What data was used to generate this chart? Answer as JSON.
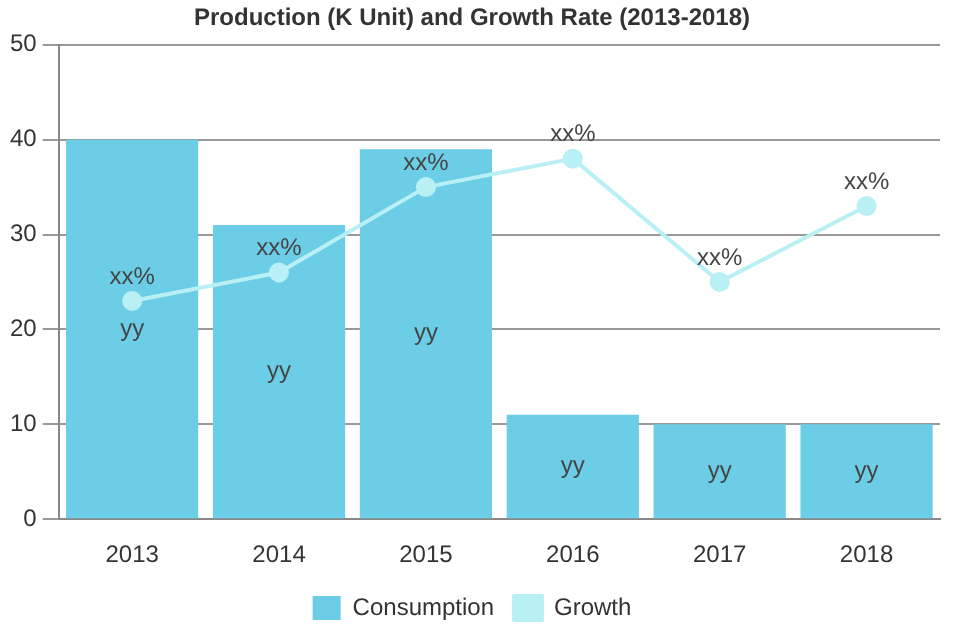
{
  "chart_data": {
    "type": "bar",
    "title": "Production (K Unit) and Growth Rate (2013-2018)",
    "categories": [
      "2013",
      "2014",
      "2015",
      "2016",
      "2017",
      "2018"
    ],
    "series": [
      {
        "name": "Consumption",
        "color": "#6ccde6",
        "values": [
          40,
          31,
          39,
          11,
          10,
          10
        ],
        "value_labels": [
          "yy",
          "yy",
          "yy",
          "yy",
          "yy",
          "yy"
        ]
      },
      {
        "name": "Growth",
        "type": "line",
        "color": "#b8f0f5",
        "values": [
          23,
          26,
          35,
          38,
          25,
          33
        ],
        "value_labels": [
          "xx%",
          "xx%",
          "xx%",
          "xx%",
          "xx%",
          "xx%"
        ],
        "marker": "circle"
      }
    ],
    "ylim": [
      0,
      50
    ],
    "yticks": [
      0,
      10,
      20,
      30,
      40,
      50
    ],
    "grid": "y",
    "legend": "bottom"
  }
}
